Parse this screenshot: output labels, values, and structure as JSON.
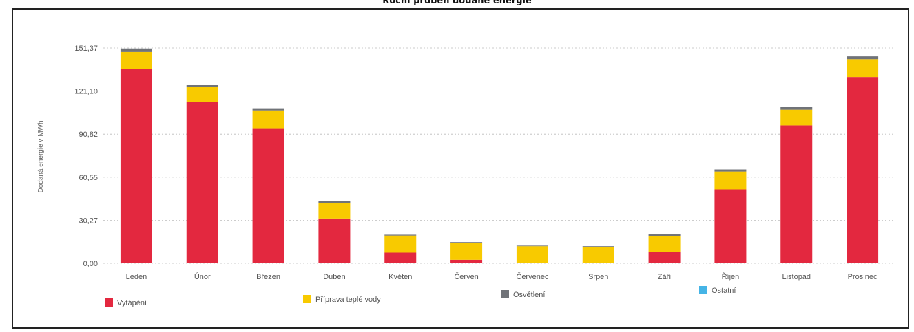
{
  "chart_data": {
    "type": "bar",
    "stacked": true,
    "title": "Roční průběh dodané energie",
    "ylabel": "Dodaná energie v MWh",
    "xlabel": "",
    "ylim": [
      0,
      151.37
    ],
    "yticks": [
      "0,00",
      "30,27",
      "60,55",
      "90,82",
      "121,10",
      "151,37"
    ],
    "grid": true,
    "legend_position": "bottom",
    "categories": [
      "Leden",
      "Únor",
      "Březen",
      "Duben",
      "Květen",
      "Červen",
      "Červenec",
      "Srpen",
      "Září",
      "Říjen",
      "Listopad",
      "Prosinec"
    ],
    "series": [
      {
        "name": "Vytápění",
        "color": "#e3283f",
        "values": [
          136.5,
          113.3,
          95.0,
          31.5,
          7.5,
          2.5,
          0,
          0,
          7.8,
          52.0,
          97.0,
          131.0
        ]
      },
      {
        "name": "Příprava teplé vody",
        "color": "#f8ca00",
        "values": [
          12.5,
          10.5,
          12.5,
          11.0,
          12.0,
          12.0,
          12.0,
          11.5,
          11.5,
          12.5,
          11.0,
          12.5
        ]
      },
      {
        "name": "Osvětlení",
        "color": "#707378",
        "values": [
          2.0,
          1.5,
          1.5,
          1.2,
          0.6,
          0.4,
          0.4,
          0.5,
          1.0,
          1.5,
          2.0,
          2.0
        ]
      },
      {
        "name": "Ostatní",
        "color": "#45b4e6",
        "values": [
          0,
          0,
          0,
          0,
          0,
          0,
          0,
          0,
          0,
          0,
          0,
          0
        ]
      }
    ]
  }
}
